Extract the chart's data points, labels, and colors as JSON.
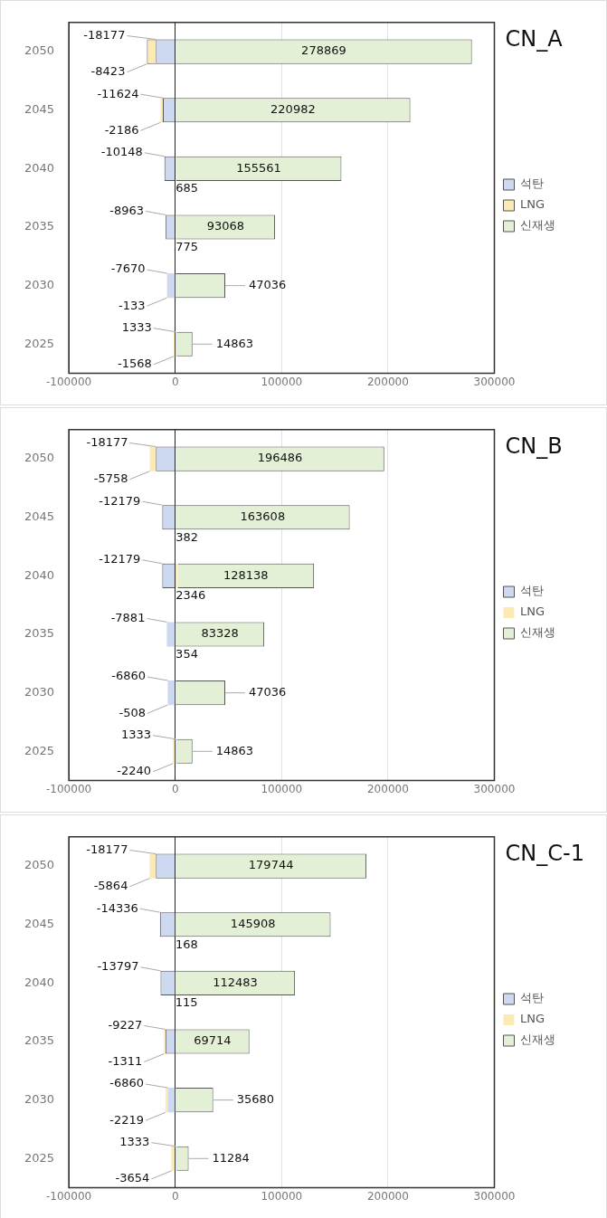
{
  "chart_data": [
    {
      "type": "bar",
      "orientation": "horizontal",
      "stacked": true,
      "title": "CN_A",
      "categories": [
        "2050",
        "2045",
        "2040",
        "2035",
        "2030",
        "2025"
      ],
      "series": [
        {
          "name": "석탄",
          "color": "#cdd9f0",
          "values": [
            -18177,
            -11624,
            -10148,
            -8963,
            -7670,
            1333
          ]
        },
        {
          "name": "LNG",
          "color": "#fbeab4",
          "values": [
            -8423,
            -2186,
            685,
            775,
            -133,
            -1568
          ]
        },
        {
          "name": "신재생",
          "color": "#e3f0d6",
          "values": [
            278869,
            220982,
            155561,
            93068,
            47036,
            14863
          ]
        }
      ],
      "xlim": [
        -100000,
        300000
      ],
      "xticks": [
        -100000,
        0,
        100000,
        200000,
        300000
      ],
      "grid": "x",
      "legend": "right",
      "data_labels": true
    },
    {
      "type": "bar",
      "orientation": "horizontal",
      "stacked": true,
      "title": "CN_B",
      "categories": [
        "2050",
        "2045",
        "2040",
        "2035",
        "2030",
        "2025"
      ],
      "series": [
        {
          "name": "석탄",
          "color": "#cdd9f0",
          "values": [
            -18177,
            -12179,
            -12179,
            -7881,
            -6860,
            1333
          ]
        },
        {
          "name": "LNG",
          "color": "#fbeab4",
          "values": [
            -5758,
            382,
            2346,
            354,
            -508,
            -2240
          ]
        },
        {
          "name": "신재생",
          "color": "#e3f0d6",
          "values": [
            196486,
            163608,
            128138,
            83328,
            47036,
            14863
          ]
        }
      ],
      "xlim": [
        -100000,
        300000
      ],
      "xticks": [
        -100000,
        0,
        100000,
        200000,
        300000
      ],
      "grid": "x",
      "legend": "right",
      "data_labels": true
    },
    {
      "type": "bar",
      "orientation": "horizontal",
      "stacked": true,
      "title": "CN_C-1",
      "categories": [
        "2050",
        "2045",
        "2040",
        "2035",
        "2030",
        "2025"
      ],
      "series": [
        {
          "name": "석탄",
          "color": "#cdd9f0",
          "values": [
            -18177,
            -14336,
            -13797,
            -9227,
            -6860,
            1333
          ]
        },
        {
          "name": "LNG",
          "color": "#fbeab4",
          "values": [
            -5864,
            168,
            115,
            -1311,
            -2219,
            -3654
          ]
        },
        {
          "name": "신재생",
          "color": "#e3f0d6",
          "values": [
            179744,
            145908,
            112483,
            69714,
            35680,
            11284
          ]
        }
      ],
      "xlim": [
        -100000,
        300000
      ],
      "xticks": [
        -100000,
        0,
        100000,
        200000,
        300000
      ],
      "grid": "x",
      "legend": "right",
      "data_labels": true
    }
  ]
}
